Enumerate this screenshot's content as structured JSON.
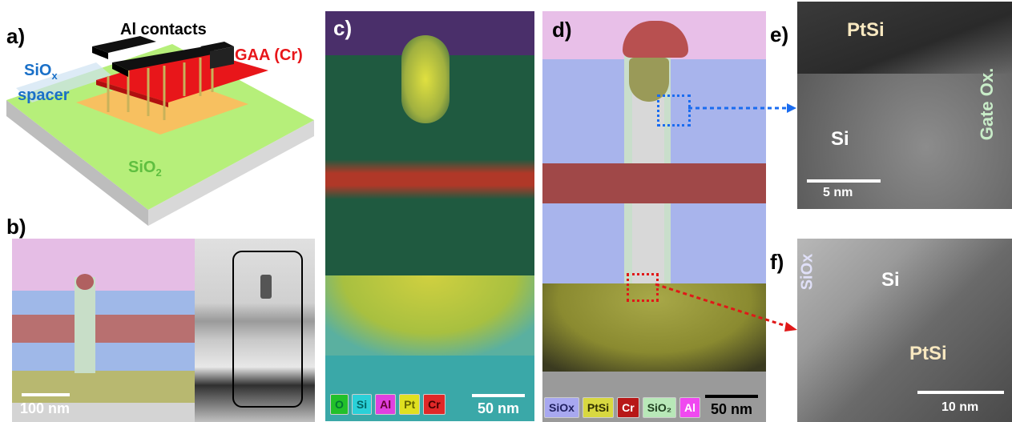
{
  "panels": {
    "a": {
      "label": "a)",
      "al_contacts": "Al contacts",
      "gaa": "GAA (Cr)",
      "siox_base": "SiO",
      "siox_sub": "x",
      "spacer": "spacer",
      "sio2_base": "SiO",
      "sio2_sub": "2"
    },
    "b": {
      "label": "b)",
      "scale": "100 nm"
    },
    "c": {
      "label": "c)",
      "scale": "50 nm",
      "legend": [
        {
          "text": "O",
          "color": "#22c02a"
        },
        {
          "text": "Si",
          "color": "#2ad0d8"
        },
        {
          "text": "Al",
          "color": "#e040e0"
        },
        {
          "text": "Pt",
          "color": "#e0e020"
        },
        {
          "text": "Cr",
          "color": "#e02828"
        }
      ]
    },
    "d": {
      "label": "d)",
      "scale": "50 nm",
      "legend": [
        {
          "text": "SiOx",
          "color": "#a8a8f0"
        },
        {
          "text": "PtSi",
          "color": "#d8d840"
        },
        {
          "text": "Cr",
          "color": "#b81818"
        },
        {
          "text": "SiO₂",
          "color": "#b8e8b8"
        },
        {
          "text": "Al",
          "color": "#f048f0"
        }
      ]
    },
    "e": {
      "label": "e)",
      "ptsi": "PtSi",
      "si": "Si",
      "gateox": "Gate Ox.",
      "scale": "5 nm"
    },
    "f": {
      "label": "f)",
      "siox": "SiOx",
      "si": "Si",
      "ptsi": "PtSi",
      "scale": "10 nm"
    }
  },
  "colors": {
    "blue_arrow": "#1a6cf0",
    "red_arrow": "#e01818"
  }
}
